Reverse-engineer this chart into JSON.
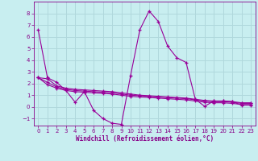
{
  "bg_color": "#c8eef0",
  "grid_color": "#b0d8dc",
  "line_color": "#990099",
  "tick_color": "#880088",
  "xlim": [
    -0.5,
    23.5
  ],
  "ylim": [
    -1.6,
    9.0
  ],
  "xticks": [
    0,
    1,
    2,
    3,
    4,
    5,
    6,
    7,
    8,
    9,
    10,
    11,
    12,
    13,
    14,
    15,
    16,
    17,
    18,
    19,
    20,
    21,
    22,
    23
  ],
  "yticks": [
    -1,
    0,
    1,
    2,
    3,
    4,
    5,
    6,
    7,
    8
  ],
  "xlabel": "Windchill (Refroidissement éolien,°C)",
  "line1_x": [
    0,
    1,
    2,
    3,
    4,
    5,
    6,
    7,
    8,
    9,
    10,
    11,
    12,
    13,
    14,
    15,
    16,
    17,
    18,
    19,
    20,
    21,
    22,
    23
  ],
  "line1_y": [
    6.6,
    2.5,
    2.1,
    1.4,
    0.4,
    1.3,
    -0.3,
    -1.0,
    -1.4,
    -1.5,
    2.7,
    6.6,
    8.2,
    7.3,
    5.2,
    4.2,
    3.8,
    0.65,
    0.05,
    0.5,
    0.5,
    0.45,
    0.15,
    0.15
  ],
  "line2_x": [
    0,
    1,
    2,
    3,
    4,
    5,
    6,
    7,
    8,
    9,
    10,
    11,
    12,
    13,
    14,
    15,
    16,
    17,
    18,
    19,
    20,
    21,
    22,
    23
  ],
  "line2_y": [
    2.5,
    2.4,
    1.8,
    1.6,
    1.5,
    1.45,
    1.4,
    1.35,
    1.3,
    1.2,
    1.1,
    1.0,
    0.95,
    0.9,
    0.85,
    0.8,
    0.75,
    0.65,
    0.55,
    0.5,
    0.5,
    0.45,
    0.35,
    0.35
  ],
  "line3_x": [
    0,
    1,
    2,
    3,
    4,
    5,
    6,
    7,
    8,
    9,
    10,
    11,
    12,
    13,
    14,
    15,
    16,
    17,
    18,
    19,
    20,
    21,
    22,
    23
  ],
  "line3_y": [
    2.5,
    2.1,
    1.7,
    1.5,
    1.4,
    1.35,
    1.3,
    1.25,
    1.2,
    1.1,
    1.0,
    0.95,
    0.9,
    0.85,
    0.8,
    0.75,
    0.7,
    0.6,
    0.5,
    0.45,
    0.45,
    0.4,
    0.3,
    0.3
  ],
  "line4_x": [
    0,
    1,
    2,
    3,
    4,
    5,
    6,
    7,
    8,
    9,
    10,
    11,
    12,
    13,
    14,
    15,
    16,
    17,
    18,
    19,
    20,
    21,
    22,
    23
  ],
  "line4_y": [
    2.5,
    1.9,
    1.6,
    1.4,
    1.3,
    1.25,
    1.2,
    1.15,
    1.1,
    1.0,
    0.9,
    0.85,
    0.8,
    0.75,
    0.7,
    0.65,
    0.6,
    0.5,
    0.4,
    0.35,
    0.35,
    0.3,
    0.2,
    0.2
  ]
}
